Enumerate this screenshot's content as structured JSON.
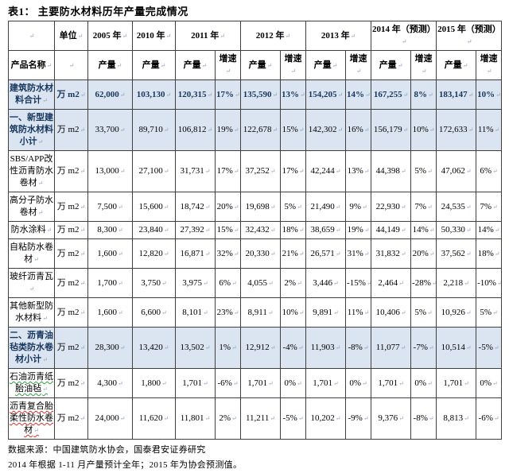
{
  "title": "表1：  主要防水材料历年产量完成情况",
  "marks": {
    "pilcrow": "↵"
  },
  "colors": {
    "row_shade": "#dbe5f1",
    "accent_text": "#17365d",
    "border": "#3f3f3f",
    "spellcheck_green": "#2f9e44",
    "spellcheck_red": "#d93025"
  },
  "table": {
    "header": {
      "product_col": "产品名称",
      "unit_col": "单位",
      "single_years": [
        "2005 年",
        "2010 年"
      ],
      "pair_years": [
        "2011 年",
        "2012 年",
        "2013 年",
        "2014 年（预测）",
        "2015 年（预测）"
      ],
      "output_label": "产量",
      "growth_label": "增速"
    },
    "rows": [
      {
        "label": "建筑防水材料合计",
        "unit": "万 m2",
        "style": "total",
        "mark": null,
        "values": [
          "62,000",
          "103,130",
          "120,315",
          "17%",
          "135,590",
          "13%",
          "154,205",
          "14%",
          "167,255",
          "8%",
          "183,147",
          "10%"
        ]
      },
      {
        "label": "一、新型建筑防水材料小计",
        "unit": "万 m2",
        "style": "subtotal",
        "mark": null,
        "values": [
          "33,700",
          "89,710",
          "106,812",
          "19%",
          "122,678",
          "15%",
          "142,302",
          "16%",
          "156,179",
          "10%",
          "172,633",
          "11%"
        ]
      },
      {
        "label": "SBS/APP改性沥青防水卷材",
        "unit": "万 m2",
        "style": "normal",
        "mark": null,
        "values": [
          "13,000",
          "27,100",
          "31,731",
          "17%",
          "37,252",
          "17%",
          "42,244",
          "13%",
          "44,398",
          "5%",
          "47,062",
          "6%"
        ]
      },
      {
        "label": "高分子防水卷材",
        "unit": "万 m2",
        "style": "normal",
        "mark": null,
        "values": [
          "7,500",
          "15,600",
          "18,742",
          "20%",
          "19,698",
          "5%",
          "21,490",
          "9%",
          "22,930",
          "7%",
          "24,535",
          "7%"
        ]
      },
      {
        "label": "防水涂料",
        "unit": "万 m2",
        "style": "normal",
        "mark": null,
        "values": [
          "8,300",
          "23,840",
          "27,392",
          "15%",
          "32,432",
          "18%",
          "38,659",
          "19%",
          "44,149",
          "14%",
          "50,330",
          "14%"
        ]
      },
      {
        "label": "自粘防水卷材",
        "unit": "万 m2",
        "style": "normal",
        "mark": null,
        "values": [
          "1,600",
          "12,820",
          "16,871",
          "32%",
          "20,330",
          "21%",
          "26,571",
          "31%",
          "31,832",
          "20%",
          "37,562",
          "18%"
        ]
      },
      {
        "label": "玻纤沥青瓦",
        "unit": "万 m2",
        "style": "normal",
        "mark": null,
        "values": [
          "1,700",
          "3,750",
          "3,975",
          "6%",
          "4,055",
          "2%",
          "3,446",
          "-15%",
          "2,464",
          "-28%",
          "2,218",
          "-10%"
        ]
      },
      {
        "label": "其他新型防水材料",
        "unit": "万 m2",
        "style": "normal",
        "mark": null,
        "values": [
          "1,600",
          "6,600",
          "8,101",
          "23%",
          "8,911",
          "10%",
          "9,891",
          "11%",
          "10,406",
          "5%",
          "10,926",
          "5%"
        ]
      },
      {
        "label": "二、沥青油毡类防水卷材小计",
        "unit": "万 m2",
        "style": "subtotal",
        "mark": null,
        "values": [
          "28,300",
          "13,420",
          "13,502",
          "1%",
          "12,912",
          "-4%",
          "11,903",
          "-8%",
          "11,077",
          "-7%",
          "10,514",
          "-5%"
        ]
      },
      {
        "label": "石油沥青纸胎油毡",
        "unit": "万 m2",
        "style": "normal",
        "mark": "green",
        "values": [
          "4,300",
          "1,800",
          "1,701",
          "-6%",
          "1,701",
          "0%",
          "1,701",
          "0%",
          "1,701",
          "0%",
          "1,701",
          "0%"
        ]
      },
      {
        "label": "沥青复合胎柔性防水卷材",
        "unit": "万 m2",
        "style": "normal",
        "mark": "red",
        "values": [
          "24,000",
          "11,620",
          "11,801",
          "2%",
          "11,211",
          "-5%",
          "10,202",
          "-9%",
          "9,376",
          "-8%",
          "8,813",
          "-6%"
        ]
      }
    ]
  },
  "footer": {
    "source": "数据来源：中国建筑防水协会，国泰君安证券研究",
    "note": "2014 年根据 1-11 月产量预计全年；2015 年为协会预测值。"
  }
}
